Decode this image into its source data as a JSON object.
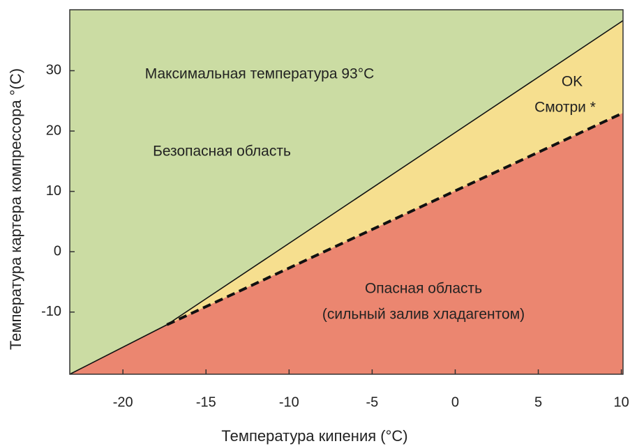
{
  "chart_data": {
    "type": "region",
    "xlabel": "Температура кипения (°C)",
    "ylabel": "Температура картера компрессора °(C)",
    "xlim": [
      -23.2,
      10.1
    ],
    "ylim": [
      -20.3,
      40.1
    ],
    "xticks": [
      -20,
      -15,
      -10,
      -5,
      0,
      5,
      10
    ],
    "yticks": [
      -10,
      0,
      10,
      20,
      30
    ],
    "background_color": "#cbdca3",
    "series": [
      {
        "style": "solid",
        "color": "#111111",
        "fill": "#f6df8f",
        "x": [
          -23.2,
          -17.35,
          10.1
        ],
        "y": [
          -20.3,
          -12.1,
          38.3
        ]
      },
      {
        "style": "dashed",
        "color": "#111111",
        "fill": "#eb8670",
        "x": [
          -17.35,
          10.1
        ],
        "y": [
          -12.1,
          23
        ]
      }
    ],
    "annotations": [
      "Максимальная температура 93°C",
      "Безопасная область",
      "OK",
      "Смотри *",
      "Опасная область",
      "(сильный залив хладагентом)"
    ]
  }
}
